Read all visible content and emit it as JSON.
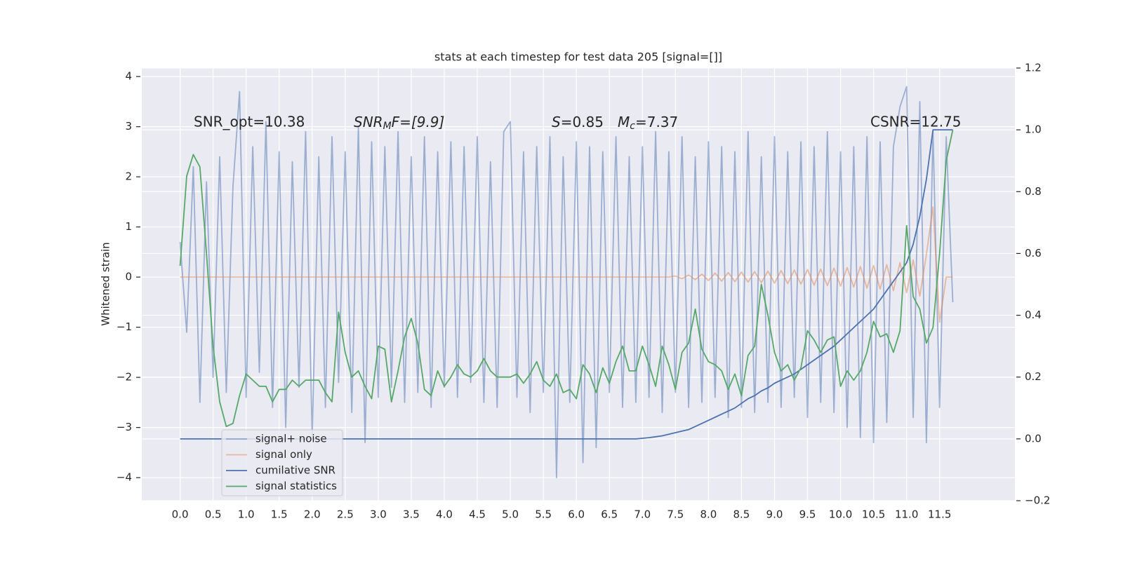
{
  "chart_data": {
    "type": "line",
    "title": "stats at each timestep for test data 205 [signal=[]]",
    "ylabel": "Whitened strain",
    "grid": true,
    "legend": "lower left",
    "xlim": [
      -0.58,
      12.64
    ],
    "ylim": [
      -4.46,
      4.17
    ],
    "y2lim": [
      -0.2,
      1.2
    ],
    "xticks": [
      {
        "value": 0,
        "label": "0.0"
      },
      0.5,
      {
        "value": 1,
        "label": "1.0"
      },
      1.5,
      {
        "value": 2,
        "label": "2.0"
      },
      2.5,
      {
        "value": 3,
        "label": "3.0"
      },
      3.5,
      {
        "value": 4,
        "label": "4.0"
      },
      4.5,
      {
        "value": 5,
        "label": "5.0"
      },
      5.5,
      {
        "value": 6,
        "label": "6.0"
      },
      6.5,
      {
        "value": 7,
        "label": "7.0"
      },
      7.5,
      {
        "value": 8,
        "label": "8.0"
      },
      8.5,
      {
        "value": 9,
        "label": "9.0"
      },
      9.5,
      {
        "value": 10,
        "label": "10.0"
      },
      10.5,
      {
        "value": 11,
        "label": "11.0"
      },
      11.5
    ],
    "yticks": [
      {
        "value": -4,
        "label": "−4"
      },
      {
        "value": -3,
        "label": "−3"
      },
      {
        "value": -2,
        "label": "−2"
      },
      {
        "value": -1,
        "label": "−1"
      },
      0,
      1,
      2,
      3,
      4
    ],
    "y2ticks": [
      {
        "value": -0.2,
        "label": "−0.2"
      },
      {
        "value": 0,
        "label": "0.0"
      },
      0.2,
      0.4,
      0.6,
      0.8,
      {
        "value": 1,
        "label": "1.0"
      },
      1.2
    ],
    "annotations": [
      {
        "text": "SNR_opt=10.38"
      },
      {
        "parts": [
          "SNR",
          "M",
          "F=[9.9]"
        ]
      },
      {
        "parts": [
          "S",
          "=0.85"
        ]
      },
      {
        "parts": [
          "M",
          "c",
          "=7.37"
        ]
      },
      {
        "text": "CSNR=12.75"
      }
    ],
    "x": [
      0,
      0.1,
      0.2,
      0.3,
      0.4,
      0.5,
      0.6,
      0.7,
      0.8,
      0.9,
      1,
      1.1,
      1.2,
      1.3,
      1.4,
      1.5,
      1.6,
      1.7,
      1.8,
      1.9,
      2,
      2.1,
      2.2,
      2.3,
      2.4,
      2.5,
      2.6,
      2.7,
      2.8,
      2.9,
      3,
      3.1,
      3.2,
      3.3,
      3.4,
      3.5,
      3.6,
      3.7,
      3.8,
      3.9,
      4,
      4.1,
      4.2,
      4.3,
      4.4,
      4.5,
      4.6,
      4.7,
      4.8,
      4.9,
      5,
      5.1,
      5.2,
      5.3,
      5.4,
      5.5,
      5.6,
      5.7,
      5.8,
      5.9,
      6,
      6.1,
      6.2,
      6.3,
      6.4,
      6.5,
      6.6,
      6.7,
      6.8,
      6.9,
      7,
      7.1,
      7.2,
      7.3,
      7.4,
      7.5,
      7.6,
      7.7,
      7.8,
      7.9,
      8,
      8.1,
      8.2,
      8.3,
      8.4,
      8.5,
      8.6,
      8.7,
      8.8,
      8.9,
      9,
      9.1,
      9.2,
      9.3,
      9.4,
      9.5,
      9.6,
      9.7,
      9.8,
      9.9,
      10,
      10.1,
      10.2,
      10.3,
      10.4,
      10.5,
      10.6,
      10.7,
      10.8,
      10.9,
      11,
      11.1,
      11.2,
      11.3,
      11.4,
      11.5,
      11.6,
      11.7
    ],
    "series": [
      {
        "name": "signal+ noise",
        "color": "#4c72b0",
        "opacity": 0.5,
        "values": [
          0.7,
          -1.1,
          2.2,
          -2.5,
          1.9,
          -2.0,
          2.4,
          -2.3,
          1.8,
          3.7,
          -2.4,
          2.6,
          -1.9,
          3.1,
          -2.6,
          2.5,
          -3.0,
          2.3,
          -2.2,
          2.9,
          -3.2,
          2.4,
          -2.6,
          2.8,
          -2.1,
          2.5,
          -2.7,
          3.0,
          -3.3,
          2.7,
          -2.4,
          2.6,
          -2.2,
          2.9,
          -2.5,
          2.4,
          -2.3,
          2.8,
          -2.6,
          2.5,
          -2.2,
          2.7,
          -2.4,
          2.6,
          -2.1,
          2.8,
          -2.5,
          2.3,
          -2.6,
          2.9,
          3.1,
          -2.4,
          2.5,
          -2.7,
          2.6,
          -2.3,
          2.8,
          -4.0,
          2.4,
          -2.5,
          2.7,
          -3.7,
          2.6,
          -3.4,
          2.5,
          -2.3,
          2.8,
          -2.6,
          2.4,
          -2.5,
          2.6,
          -2.4,
          2.9,
          -2.7,
          2.5,
          -2.3,
          2.8,
          -2.6,
          2.4,
          -2.5,
          2.7,
          -2.4,
          2.6,
          -2.8,
          2.5,
          -2.6,
          2.9,
          -2.7,
          2.4,
          -2.5,
          2.8,
          -2.6,
          2.5,
          -2.4,
          2.7,
          -2.8,
          2.6,
          -2.5,
          2.9,
          -2.7,
          2.5,
          -3.0,
          2.6,
          -3.2,
          2.8,
          -3.3,
          2.7,
          -2.9,
          2.6,
          3.4,
          3.8,
          -2.8,
          3.5,
          -3.3,
          2.9,
          -2.6,
          2.8,
          -0.5
        ]
      },
      {
        "name": "signal only",
        "color": "#dd8452",
        "opacity": 0.5,
        "values": [
          0,
          0,
          0,
          0,
          0,
          0,
          0,
          0,
          0,
          0,
          0,
          0,
          0,
          0,
          0,
          0,
          0,
          0,
          0,
          0,
          0,
          0,
          0,
          0,
          0,
          0,
          0,
          0,
          0,
          0,
          0,
          0,
          0,
          0,
          0,
          0,
          0,
          0,
          0,
          0,
          0,
          0,
          0,
          0,
          0,
          0,
          0,
          0,
          0,
          0,
          0,
          0,
          0,
          0,
          0,
          0,
          0,
          0,
          0,
          0,
          0,
          0,
          0,
          0,
          0,
          0,
          0,
          0,
          0,
          0,
          0,
          0,
          0,
          0,
          0,
          0.02,
          -0.03,
          0.04,
          -0.05,
          0.06,
          -0.07,
          0.08,
          -0.08,
          0.09,
          -0.09,
          0.1,
          -0.1,
          0.11,
          -0.11,
          0.12,
          -0.12,
          0.13,
          -0.13,
          0.14,
          -0.14,
          0.15,
          -0.16,
          0.16,
          -0.17,
          0.18,
          -0.18,
          0.19,
          -0.2,
          0.21,
          -0.22,
          0.23,
          -0.24,
          0.25,
          -0.27,
          0.29,
          -0.31,
          0.34,
          -0.38,
          0.45,
          1.4,
          -0.9,
          0,
          0
        ]
      },
      {
        "name": "cumilative SNR",
        "color": "#4c72b0",
        "opacity": 1,
        "axis": "y2",
        "values": [
          0,
          0,
          0,
          0,
          0,
          0,
          0,
          0,
          0,
          0,
          0,
          0,
          0,
          0,
          0,
          0,
          0,
          0,
          0,
          0,
          0,
          0,
          0,
          0,
          0,
          0,
          0,
          0,
          0,
          0,
          0,
          0,
          0,
          0,
          0,
          0,
          0,
          0,
          0,
          0,
          0,
          0,
          0,
          0,
          0,
          0,
          0,
          0,
          0,
          0,
          0,
          0,
          0,
          0,
          0,
          0,
          0,
          0,
          0,
          0,
          0,
          0,
          0,
          0,
          0,
          0,
          0,
          0,
          0,
          0,
          0.002,
          0.004,
          0.007,
          0.01,
          0.015,
          0.02,
          0.025,
          0.03,
          0.04,
          0.05,
          0.06,
          0.07,
          0.08,
          0.09,
          0.1,
          0.115,
          0.13,
          0.14,
          0.155,
          0.165,
          0.18,
          0.19,
          0.2,
          0.21,
          0.225,
          0.24,
          0.255,
          0.27,
          0.285,
          0.3,
          0.32,
          0.34,
          0.36,
          0.38,
          0.4,
          0.42,
          0.45,
          0.48,
          0.51,
          0.54,
          0.57,
          0.63,
          0.72,
          0.84,
          1.0,
          1.0,
          1.0,
          1.0
        ]
      },
      {
        "name": "signal statistics",
        "color": "#55a868",
        "opacity": 1,
        "axis": "y2",
        "values": [
          0.56,
          0.85,
          0.92,
          0.88,
          0.6,
          0.3,
          0.12,
          0.04,
          0.05,
          0.14,
          0.21,
          0.19,
          0.17,
          0.17,
          0.12,
          0.16,
          0.16,
          0.19,
          0.17,
          0.19,
          0.19,
          0.19,
          0.15,
          0.12,
          0.41,
          0.28,
          0.2,
          0.22,
          0.17,
          0.13,
          0.3,
          0.29,
          0.12,
          0.22,
          0.33,
          0.39,
          0.31,
          0.16,
          0.14,
          0.22,
          0.17,
          0.2,
          0.24,
          0.21,
          0.2,
          0.22,
          0.26,
          0.22,
          0.2,
          0.2,
          0.2,
          0.21,
          0.18,
          0.21,
          0.25,
          0.19,
          0.17,
          0.21,
          0.15,
          0.16,
          0.13,
          0.24,
          0.21,
          0.15,
          0.23,
          0.18,
          0.25,
          0.3,
          0.22,
          0.22,
          0.3,
          0.24,
          0.17,
          0.3,
          0.24,
          0.16,
          0.28,
          0.31,
          0.42,
          0.29,
          0.25,
          0.24,
          0.22,
          0.16,
          0.21,
          0.14,
          0.27,
          0.3,
          0.5,
          0.4,
          0.28,
          0.22,
          0.24,
          0.19,
          0.23,
          0.35,
          0.32,
          0.28,
          0.32,
          0.33,
          0.17,
          0.22,
          0.19,
          0.22,
          0.28,
          0.38,
          0.33,
          0.34,
          0.28,
          0.35,
          0.69,
          0.46,
          0.42,
          0.31,
          0.36,
          0.6,
          0.9,
          1.0
        ]
      }
    ]
  }
}
